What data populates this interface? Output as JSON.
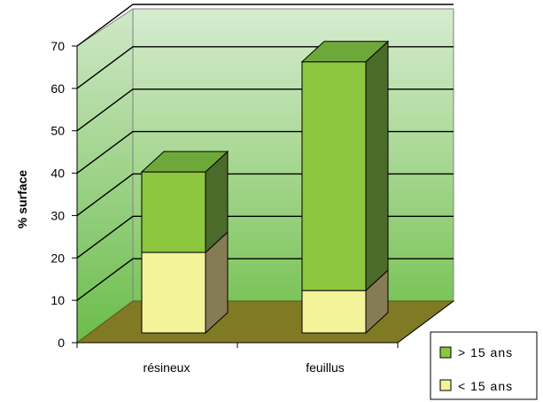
{
  "chart_data": {
    "type": "bar",
    "stacked": true,
    "three_d": true,
    "categories": [
      "résineux",
      "feuillus"
    ],
    "series": [
      {
        "name": "< 15 ans",
        "values": [
          19,
          10
        ]
      },
      {
        "name": "> 15 ans",
        "values": [
          19,
          54
        ]
      }
    ],
    "title": "",
    "xlabel": "",
    "ylabel": "% surface",
    "ylim": [
      0,
      70
    ],
    "yticks": [
      "0",
      "10",
      "20",
      "30",
      "40",
      "50",
      "60",
      "70"
    ],
    "grid": true,
    "legend_position": "bottom-right"
  },
  "colors": {
    "older_front": "#8dc63f",
    "older_top": "#6fa83a",
    "older_side": "#4b6b2a",
    "younger_front": "#f3f39a",
    "younger_side": "#857b55",
    "wall": "#c7e3b9",
    "floor": "#817a24"
  }
}
